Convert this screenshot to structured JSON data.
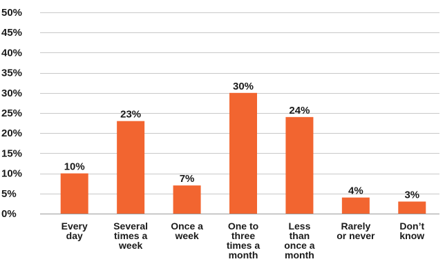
{
  "chart_data": {
    "type": "bar",
    "title": "",
    "xlabel": "",
    "ylabel": "",
    "categories": [
      "Every day",
      "Several times a week",
      "Once a week",
      "One to three times a month",
      "Less than once a month",
      "Rarely or never",
      "Don’t know"
    ],
    "category_lines": [
      [
        "Every",
        "day"
      ],
      [
        "Several",
        "times a",
        "week"
      ],
      [
        "Once a",
        "week"
      ],
      [
        "One to",
        "three",
        "times a",
        "month"
      ],
      [
        "Less",
        "than",
        "once a",
        "month"
      ],
      [
        "Rarely",
        "or never"
      ],
      [
        "Don’t",
        "know"
      ]
    ],
    "values": [
      10,
      23,
      7,
      30,
      24,
      4,
      3
    ],
    "data_labels": [
      "10%",
      "23%",
      "7%",
      "30%",
      "24%",
      "4%",
      "3%"
    ],
    "ylim": [
      0,
      50
    ],
    "yticks": [
      0,
      5,
      10,
      15,
      20,
      25,
      30,
      35,
      40,
      45,
      50
    ],
    "ytick_labels": [
      "0%",
      "5%",
      "10%",
      "15%",
      "20%",
      "25%",
      "30%",
      "35%",
      "40%",
      "45%",
      "50%"
    ],
    "grid": true,
    "bar_color": "#f26530",
    "gridline_color": "#c8c8c8",
    "text_color": "#1a1a1a"
  }
}
